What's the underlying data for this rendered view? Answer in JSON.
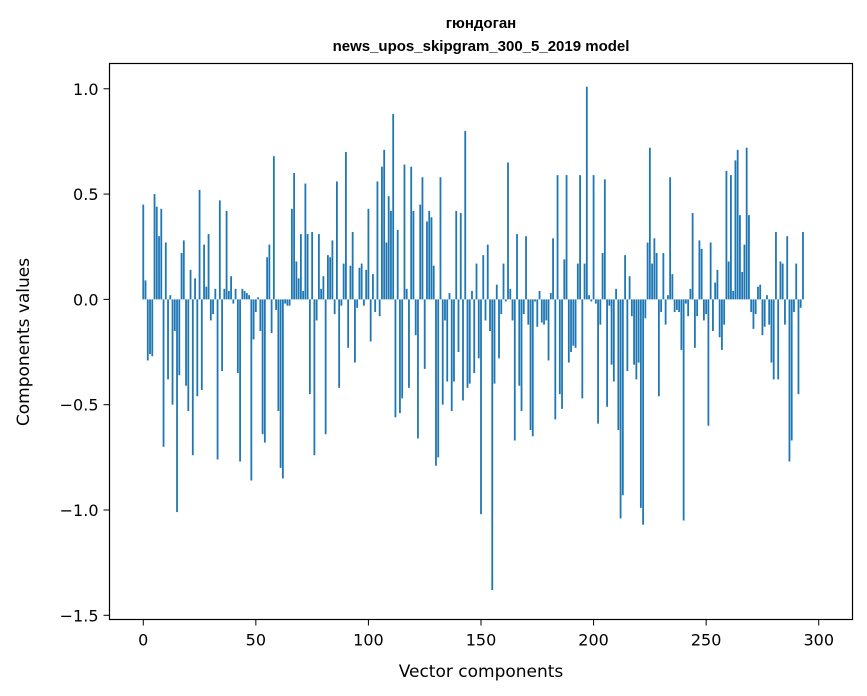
{
  "chart_data": {
    "type": "bar",
    "title": "гюндоган",
    "subtitle": "news_upos_skipgram_300_5_2019 model",
    "xlabel": "Vector components",
    "ylabel": "Components values",
    "xlim": [
      -15,
      315
    ],
    "ylim": [
      -1.52,
      1.12
    ],
    "x_ticks": [
      0,
      50,
      100,
      150,
      200,
      250,
      300
    ],
    "x_tick_labels": [
      "0",
      "50",
      "100",
      "150",
      "200",
      "250",
      "300"
    ],
    "y_ticks": [
      -1.5,
      -1.0,
      -0.5,
      0.0,
      0.5,
      1.0
    ],
    "y_tick_labels": [
      "−1.5",
      "−1.0",
      "−0.5",
      "0.0",
      "0.5",
      "1.0"
    ],
    "grid": false,
    "bar_color": "#1f77b4",
    "series": [
      {
        "values": [
          0.45,
          0.09,
          -0.29,
          -0.26,
          -0.27,
          0.5,
          0.44,
          0.3,
          0.43,
          -0.7,
          0.27,
          -0.38,
          0.02,
          -0.5,
          -0.15,
          -1.01,
          -0.36,
          0.22,
          0.28,
          -0.41,
          -0.53,
          0.14,
          -0.74,
          0.1,
          -0.46,
          0.52,
          -0.43,
          0.26,
          0.06,
          0.31,
          -0.1,
          -0.07,
          0.05,
          -0.76,
          0.47,
          -0.34,
          0.05,
          0.42,
          0.04,
          0.11,
          -0.02,
          0.05,
          -0.35,
          -0.77,
          0.05,
          0.04,
          0.03,
          0.02,
          -0.86,
          -0.19,
          -0.06,
          0.01,
          -0.15,
          -0.64,
          -0.68,
          0.2,
          0.26,
          -0.16,
          0.68,
          -0.05,
          -0.53,
          -0.8,
          -0.85,
          -0.02,
          -0.03,
          -0.03,
          0.43,
          0.6,
          0.18,
          0.1,
          0.31,
          0.04,
          0.55,
          0.31,
          -0.45,
          0.32,
          -0.74,
          -0.1,
          0.31,
          0.05,
          0.11,
          -0.64,
          0.21,
          0.2,
          0.28,
          -0.07,
          0.56,
          -0.42,
          -0.03,
          0.17,
          0.7,
          -0.23,
          0.16,
          0.32,
          -0.3,
          -0.04,
          0.15,
          0.17,
          -0.03,
          0.14,
          0.43,
          -0.2,
          0.12,
          -0.06,
          0.56,
          -0.08,
          0.63,
          0.71,
          0.27,
          0.49,
          0.42,
          0.88,
          -0.56,
          0.33,
          -0.54,
          -0.47,
          0.64,
          0.05,
          -0.42,
          0.63,
          0.42,
          -0.17,
          -0.66,
          0.45,
          0.58,
          -0.33,
          0.37,
          0.42,
          0.39,
          0.16,
          -0.79,
          -0.75,
          0.58,
          -0.5,
          -0.1,
          -0.39,
          0.03,
          -0.53,
          -0.39,
          0.42,
          -0.25,
          0.41,
          -0.48,
          0.8,
          -0.42,
          -0.4,
          0.04,
          -0.35,
          0.17,
          -0.28,
          -1.02,
          0.21,
          -0.1,
          0.26,
          -0.15,
          -1.38,
          -0.4,
          0.07,
          -0.28,
          -0.07,
          0.17,
          -0.01,
          0.65,
          0.05,
          -0.1,
          -0.67,
          0.31,
          -0.41,
          -0.53,
          -0.07,
          0.3,
          -0.12,
          -0.62,
          -0.65,
          -0.01,
          -0.13,
          0.04,
          -0.11,
          -0.12,
          -0.1,
          -0.29,
          0.03,
          0.29,
          -0.57,
          0.59,
          -0.45,
          -0.52,
          0.19,
          0.59,
          -0.3,
          -0.25,
          -0.22,
          -0.23,
          0.17,
          0.59,
          -0.47,
          0.17,
          1.01,
          0.02,
          -0.01,
          0.59,
          -0.02,
          -0.59,
          -0.12,
          0.22,
          0.57,
          -0.51,
          -0.03,
          -0.31,
          -0.39,
          0.05,
          -0.62,
          -1.04,
          -0.93,
          0.21,
          -0.34,
          0.11,
          -0.08,
          -0.31,
          -0.38,
          -0.3,
          -0.99,
          -1.07,
          -0.09,
          0.27,
          0.72,
          0.17,
          0.29,
          0.22,
          -0.46,
          -0.06,
          0.22,
          -0.12,
          0.02,
          0.58,
          0.12,
          -0.06,
          -0.05,
          -0.06,
          -0.24,
          -1.05,
          -0.02,
          -0.08,
          0.05,
          0.41,
          -0.23,
          -0.08,
          0.28,
          0.24,
          -0.1,
          -0.07,
          -0.6,
          0.27,
          -0.15,
          0.08,
          0.14,
          -0.18,
          -0.24,
          -0.12,
          0.61,
          0.18,
          0.59,
          0.04,
          0.66,
          0.71,
          0.4,
          0.13,
          0.26,
          0.72,
          0.4,
          -0.06,
          -0.14,
          -0.07,
          0.06,
          0.07,
          -0.17,
          -0.13,
          0.02,
          -0.12,
          -0.3,
          -0.38,
          0.32,
          -0.38,
          0.18,
          0.17,
          -0.12,
          0.3,
          -0.77,
          -0.67,
          -0.06,
          0.17,
          -0.45,
          -0.04,
          0.32
        ]
      }
    ]
  }
}
